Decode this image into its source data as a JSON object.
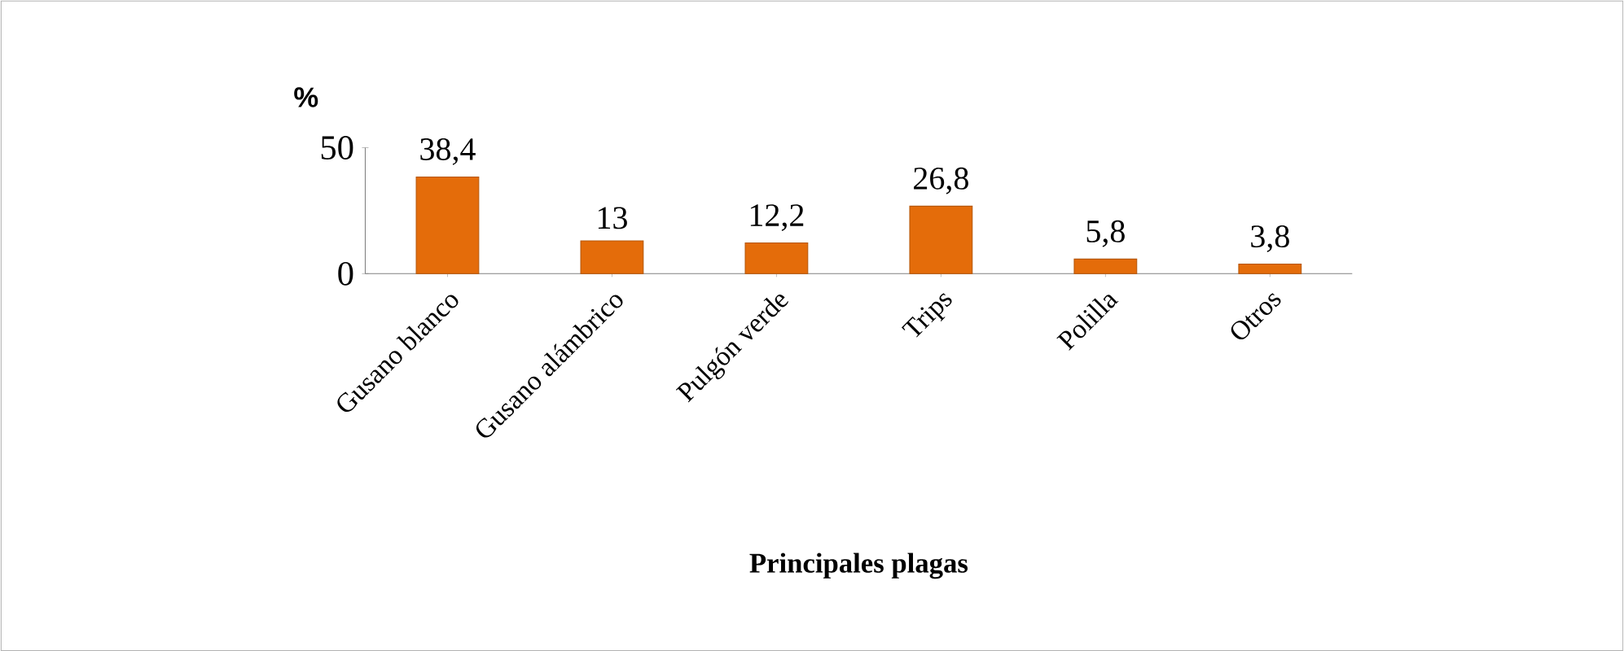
{
  "chart_data": {
    "type": "bar",
    "xlabel": "Principales plagas",
    "ylabel": "%",
    "categories": [
      "Gusano blanco",
      "Gusano alámbrico",
      "Pulgón verde",
      "Trips",
      "Polilla",
      "Otros"
    ],
    "values": [
      38.4,
      13,
      12.2,
      26.8,
      5.8,
      3.8
    ],
    "value_labels": [
      "38,4",
      "13",
      "12,2",
      "26,8",
      "5,8",
      "3,8"
    ],
    "color": "#e46c0a",
    "ylim": [
      0,
      50
    ],
    "yticks": [
      0,
      50
    ]
  }
}
